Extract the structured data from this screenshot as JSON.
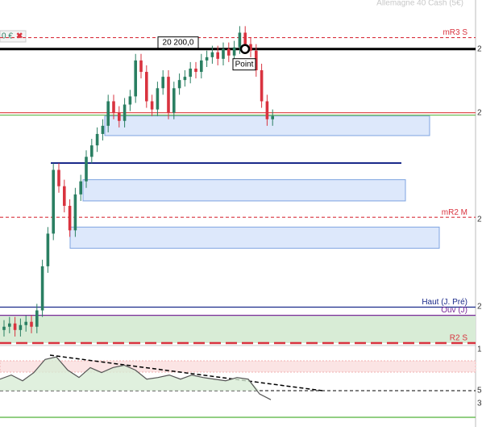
{
  "chart_data": {
    "type": "candlestick",
    "title": "Allemagne 40 Cash (5€)",
    "ylim": [
      20020,
      20230
    ],
    "up_color": "#2a7f62",
    "down_color": "#d9333f",
    "open": [
      20028,
      20030,
      20032,
      20028,
      20031,
      20033,
      20030,
      20040,
      20067,
      20087,
      20126,
      20116,
      20104,
      20089,
      20111,
      20119,
      20134,
      20141,
      20148,
      20153,
      20168,
      20161,
      20156,
      20166,
      20171,
      20193,
      20186,
      20168,
      20163,
      20176,
      20183,
      20161,
      20176,
      20181,
      20183,
      20188,
      20186,
      20193,
      20195,
      20198,
      20194,
      20200,
      20196,
      20201,
      20210,
      20203,
      20199,
      20187,
      20168,
      20157
    ],
    "high": [
      20034,
      20036,
      20036,
      20035,
      20037,
      20037,
      20044,
      20071,
      20091,
      20130,
      20130,
      20120,
      20108,
      20115,
      20123,
      20138,
      20145,
      20152,
      20157,
      20172,
      20172,
      20165,
      20170,
      20175,
      20197,
      20197,
      20190,
      20172,
      20180,
      20187,
      20187,
      20180,
      20185,
      20187,
      20192,
      20192,
      20197,
      20199,
      20202,
      20202,
      20204,
      20204,
      20205,
      20214,
      20214,
      20207,
      20203,
      20191,
      20172,
      20163
    ],
    "low": [
      20024,
      20026,
      20024,
      20024,
      20027,
      20026,
      20026,
      20036,
      20063,
      20083,
      20112,
      20100,
      20085,
      20085,
      20107,
      20115,
      20130,
      20137,
      20144,
      20149,
      20157,
      20152,
      20152,
      20162,
      20167,
      20182,
      20164,
      20159,
      20159,
      20172,
      20157,
      20157,
      20172,
      20177,
      20179,
      20182,
      20182,
      20189,
      20191,
      20190,
      20190,
      20192,
      20192,
      20197,
      20199,
      20195,
      20183,
      20164,
      20153,
      20153
    ],
    "close": [
      20030,
      20032,
      20028,
      20031,
      20033,
      20030,
      20040,
      20067,
      20087,
      20126,
      20116,
      20104,
      20089,
      20111,
      20119,
      20134,
      20141,
      20148,
      20153,
      20168,
      20161,
      20156,
      20166,
      20171,
      20193,
      20186,
      20168,
      20163,
      20176,
      20183,
      20161,
      20176,
      20181,
      20183,
      20188,
      20186,
      20193,
      20195,
      20198,
      20194,
      20200,
      20196,
      20201,
      20210,
      20203,
      20199,
      20187,
      20168,
      20157,
      20159
    ],
    "levels": [
      {
        "name": "mR3 S",
        "price": 20207,
        "color": "#d9333f",
        "dash": true
      },
      {
        "name": "20 200,0",
        "price": 20200,
        "color": "#000000",
        "dash": false
      },
      {
        "price": 20161,
        "color": "#e05050",
        "dash": false
      },
      {
        "name": "mR2 M",
        "price": 20097,
        "color": "#d9333f",
        "dash": true
      },
      {
        "name": "Haut (J. Pré)",
        "price": 20042,
        "color": "#1a2a8a",
        "dash": false
      },
      {
        "name": "Ouv (J)",
        "price": 20037,
        "color": "#7a2a9a",
        "dash": false
      },
      {
        "name": "R2 S",
        "price": 20020,
        "color": "#d9333f",
        "dash": true
      }
    ],
    "zones": [
      {
        "top": 20159,
        "bottom": 20147
      },
      {
        "top": 20120,
        "bottom": 20107
      },
      {
        "top": 20091,
        "bottom": 20078
      }
    ],
    "point_label": "Point",
    "position_label": "0 €",
    "right_axis_labels": [
      "2",
      "2",
      "2",
      "2",
      "1",
      "5",
      "3"
    ],
    "oscillator": {
      "ylim": [
        0,
        100
      ],
      "color": "#555555",
      "values": [
        64,
        69,
        62,
        72,
        88,
        91,
        75,
        66,
        78,
        72,
        78,
        81,
        75,
        64,
        66,
        69,
        64,
        69,
        66,
        64,
        62,
        66,
        64,
        46,
        39
      ]
    }
  }
}
